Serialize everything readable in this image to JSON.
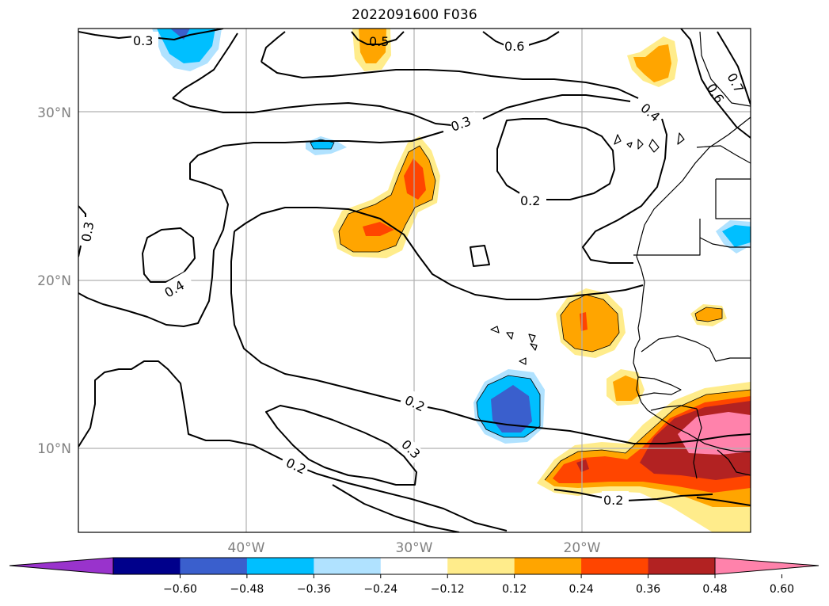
{
  "title": "2022091600 F036",
  "map": {
    "lat_labels": [
      {
        "id": "30n",
        "text": "30°N"
      },
      {
        "id": "20n",
        "text": "20°N"
      },
      {
        "id": "10n",
        "text": "10°N"
      }
    ],
    "lon_labels": [
      {
        "id": "40w",
        "text": "40°W"
      },
      {
        "id": "30w",
        "text": "30°W"
      },
      {
        "id": "20w",
        "text": "20°W"
      }
    ],
    "contour_labels": [
      {
        "id": "c1",
        "text": "0.3"
      },
      {
        "id": "c2",
        "text": "0.5"
      },
      {
        "id": "c3",
        "text": "0.6"
      },
      {
        "id": "c4",
        "text": "0.7"
      },
      {
        "id": "c5",
        "text": "0.6"
      },
      {
        "id": "c6",
        "text": "0.4"
      },
      {
        "id": "c7",
        "text": "0.3"
      },
      {
        "id": "c8",
        "text": "0.2"
      },
      {
        "id": "c9",
        "text": "0.3"
      },
      {
        "id": "c10",
        "text": "0.4"
      },
      {
        "id": "c11",
        "text": "0.2"
      },
      {
        "id": "c12",
        "text": "0.3"
      },
      {
        "id": "c13",
        "text": "0.2"
      },
      {
        "id": "c14",
        "text": "0.2"
      }
    ],
    "grid": true,
    "gridline_color": "#b0b0b0"
  },
  "colorbar": {
    "colors": [
      "#9933cc",
      "#00008b",
      "#3a5fcd",
      "#00bfff",
      "#b0e2ff",
      "#ffffff",
      "#ffec8b",
      "#ffa500",
      "#ff4500",
      "#b22222",
      "#ff82ab"
    ],
    "ticks": [
      "−0.60",
      "−0.48",
      "−0.36",
      "−0.24",
      "−0.12",
      "0.12",
      "0.24",
      "0.36",
      "0.48",
      "0.60"
    ],
    "extend": "both"
  }
}
